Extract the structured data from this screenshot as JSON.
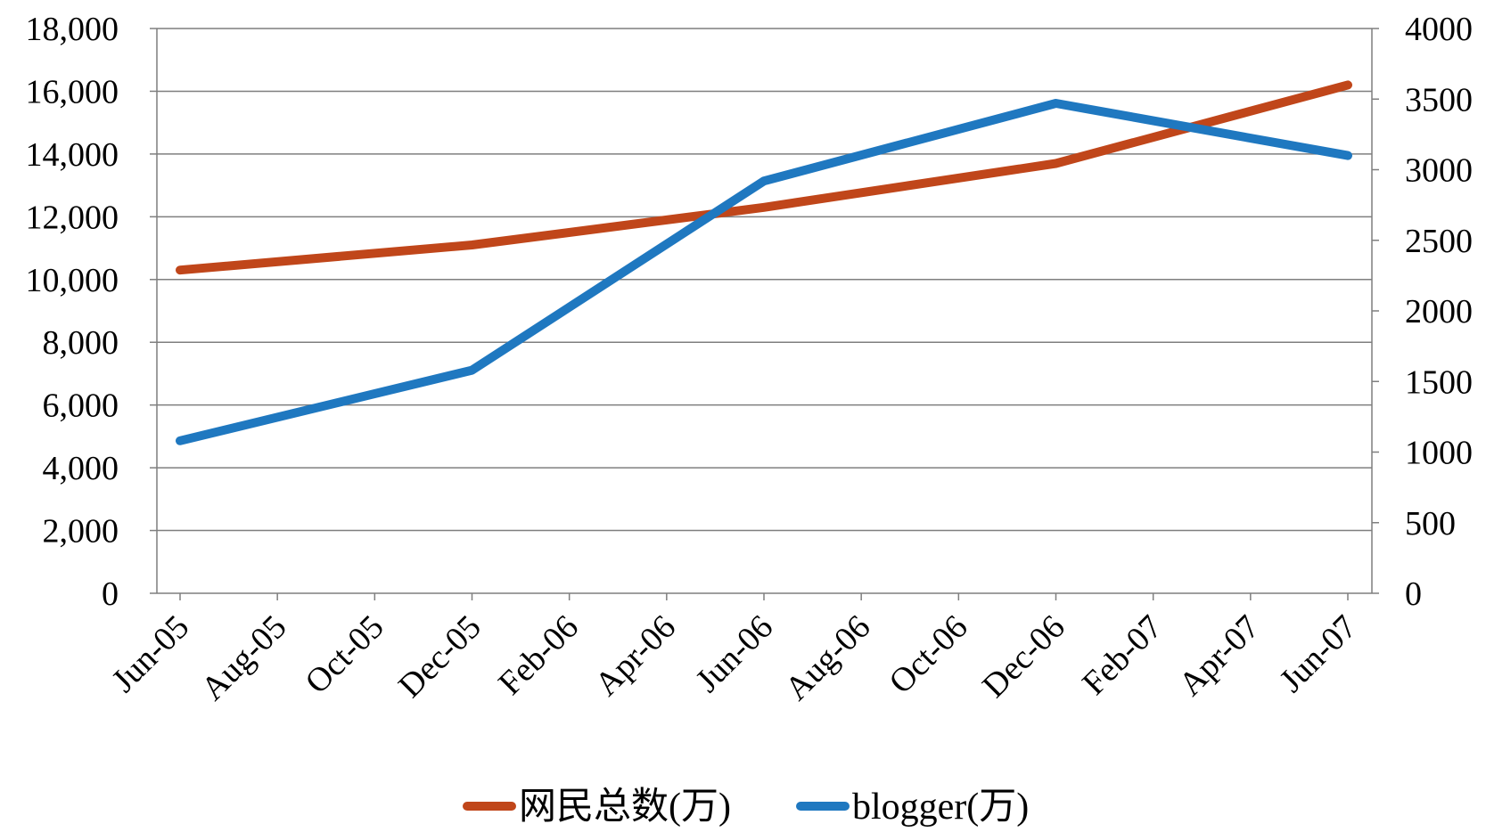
{
  "chart_data": {
    "type": "line",
    "title": "",
    "xlabel": "",
    "ylabel": "",
    "y2label": "",
    "grid": true,
    "legend_position": "bottom",
    "categories": [
      "Jun-05",
      "Aug-05",
      "Oct-05",
      "Dec-05",
      "Feb-06",
      "Apr-06",
      "Jun-06",
      "Aug-06",
      "Oct-06",
      "Dec-06",
      "Feb-07",
      "Apr-07",
      "Jun-07"
    ],
    "y_left": {
      "min": 0,
      "max": 18000,
      "ticks": [
        "0",
        "2,000",
        "4,000",
        "6,000",
        "8,000",
        "10,000",
        "12,000",
        "14,000",
        "16,000",
        "18,000"
      ]
    },
    "y_right": {
      "min": 0,
      "max": 4000,
      "ticks": [
        "0",
        "500",
        "1000",
        "1500",
        "2000",
        "2500",
        "3000",
        "3500",
        "4000"
      ]
    },
    "series": [
      {
        "name": "网民总数(万)",
        "axis": "left",
        "color": "#C0461A",
        "points": [
          {
            "x": "Jun-05",
            "y": 10300
          },
          {
            "x": "Dec-05",
            "y": 11100
          },
          {
            "x": "Jun-06",
            "y": 12300
          },
          {
            "x": "Dec-06",
            "y": 13700
          },
          {
            "x": "Jun-07",
            "y": 16200
          }
        ]
      },
      {
        "name": "blogger(万)",
        "axis": "right",
        "color": "#1F78C0",
        "points": [
          {
            "x": "Jun-05",
            "y": 1080
          },
          {
            "x": "Dec-05",
            "y": 1580
          },
          {
            "x": "Jun-06",
            "y": 2920
          },
          {
            "x": "Dec-06",
            "y": 3470
          },
          {
            "x": "Jun-07",
            "y": 3100
          }
        ]
      }
    ]
  }
}
